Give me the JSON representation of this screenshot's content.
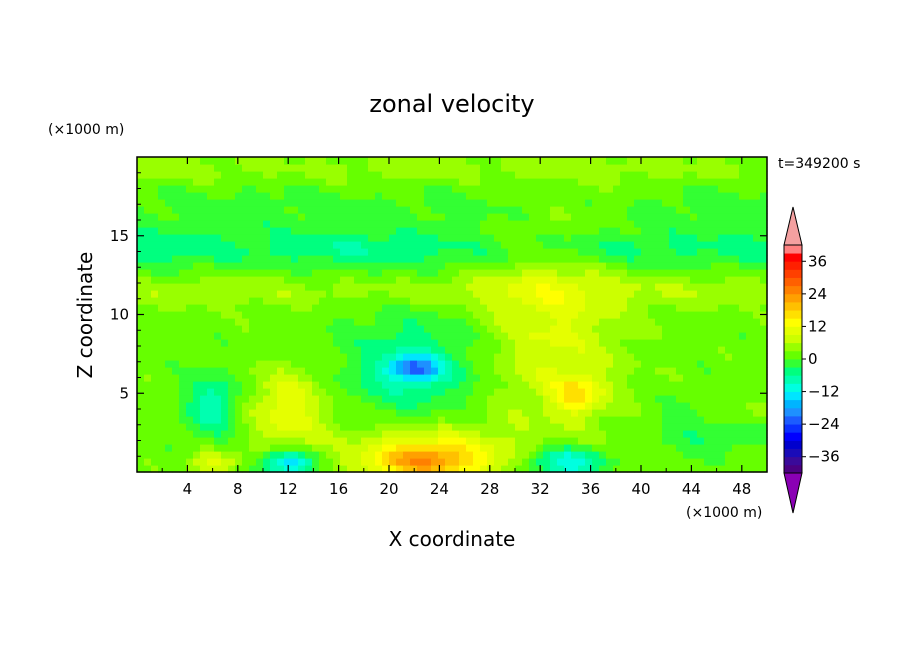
{
  "chart_data": {
    "type": "heatmap",
    "title": "zonal velocity",
    "xlabel": "X coordinate",
    "ylabel": "Z coordinate",
    "x_unit": "(×1000 m)",
    "y_unit": "(×1000 m)",
    "time_label": "t=349200 s",
    "xlim": [
      0,
      50
    ],
    "ylim": [
      0,
      20
    ],
    "x_ticks": [
      4,
      8,
      12,
      16,
      20,
      24,
      28,
      32,
      36,
      40,
      44,
      48
    ],
    "y_ticks": [
      5,
      10,
      15
    ],
    "colorbar": {
      "levels": [
        -42,
        -39,
        -36,
        -33,
        -30,
        -27,
        -24,
        -21,
        -18,
        -15,
        -12,
        -9,
        -6,
        -3,
        0,
        3,
        6,
        9,
        12,
        15,
        18,
        21,
        24,
        27,
        30,
        33,
        36,
        39,
        42
      ],
      "colors": [
        "#4b0082",
        "#3a0a9a",
        "#1a0bb8",
        "#0000cd",
        "#0000ff",
        "#0a30ff",
        "#1c5cff",
        "#1e90ff",
        "#00b4ff",
        "#00e5ff",
        "#00ffe0",
        "#00ffb0",
        "#00ff7f",
        "#33ff33",
        "#66ff00",
        "#99ff00",
        "#ccff00",
        "#e5ff00",
        "#ffff00",
        "#ffe000",
        "#ffc000",
        "#ffa000",
        "#ff8000",
        "#ff6000",
        "#ff4000",
        "#ff2000",
        "#ff0000",
        "#ff8080"
      ],
      "over_color": "#f4a0a0",
      "under_color": "#8a00b4",
      "tick_labels": [
        "36",
        "24",
        "12",
        "0",
        "−12",
        "−24",
        "−36"
      ],
      "tick_values": [
        36,
        24,
        12,
        0,
        -12,
        -24,
        -36
      ]
    },
    "field_features": [
      {
        "kind": "background",
        "value": 1.5
      },
      {
        "kind": "blob",
        "x": 22,
        "z": 6.6,
        "value": -17,
        "rx": 2.0,
        "rz": 0.8
      },
      {
        "kind": "blob",
        "x": 22,
        "z": 6.6,
        "value": -8,
        "rx": 5.5,
        "rz": 3.5
      },
      {
        "kind": "blob",
        "x": 33,
        "z": 9.5,
        "value": 8,
        "rx": 5.5,
        "rz": 7.0
      },
      {
        "kind": "blob",
        "x": 35,
        "z": 5.0,
        "value": 11,
        "rx": 2.0,
        "rz": 1.2
      },
      {
        "kind": "blob",
        "x": 23,
        "z": 0.7,
        "value": 16,
        "rx": 4.5,
        "rz": 1.2
      },
      {
        "kind": "blob",
        "x": 23,
        "z": 1.5,
        "value": 8,
        "rx": 7.0,
        "rz": 2.0
      },
      {
        "kind": "blob",
        "x": 12,
        "z": 4.0,
        "value": 10,
        "rx": 3.0,
        "rz": 2.5
      },
      {
        "kind": "blob",
        "x": 6,
        "z": 4.2,
        "value": -10,
        "rx": 2.0,
        "rz": 2.0
      },
      {
        "kind": "blob",
        "x": 12,
        "z": 0.6,
        "value": -18,
        "rx": 2.0,
        "rz": 0.8
      },
      {
        "kind": "blob",
        "x": 34,
        "z": 0.6,
        "value": -15,
        "rx": 3.0,
        "rz": 1.0
      },
      {
        "kind": "blob",
        "x": 46,
        "z": 3.0,
        "value": -8,
        "rx": 4.0,
        "rz": 1.5
      },
      {
        "kind": "blob",
        "x": 6,
        "z": 0.6,
        "value": 9,
        "rx": 2.0,
        "rz": 0.8
      },
      {
        "kind": "blob",
        "x": 47,
        "z": 3.5,
        "value": 8,
        "rx": 3.0,
        "rz": 1.0
      },
      {
        "kind": "band",
        "z": 14.2,
        "value": -7,
        "rz": 1.3
      },
      {
        "kind": "band",
        "z": 16.8,
        "value": -3,
        "rz": 1.4
      },
      {
        "kind": "band",
        "z": 11.5,
        "value": 4,
        "rz": 1.0
      },
      {
        "kind": "band",
        "z": 19.3,
        "value": 3,
        "rz": 0.8
      }
    ]
  }
}
